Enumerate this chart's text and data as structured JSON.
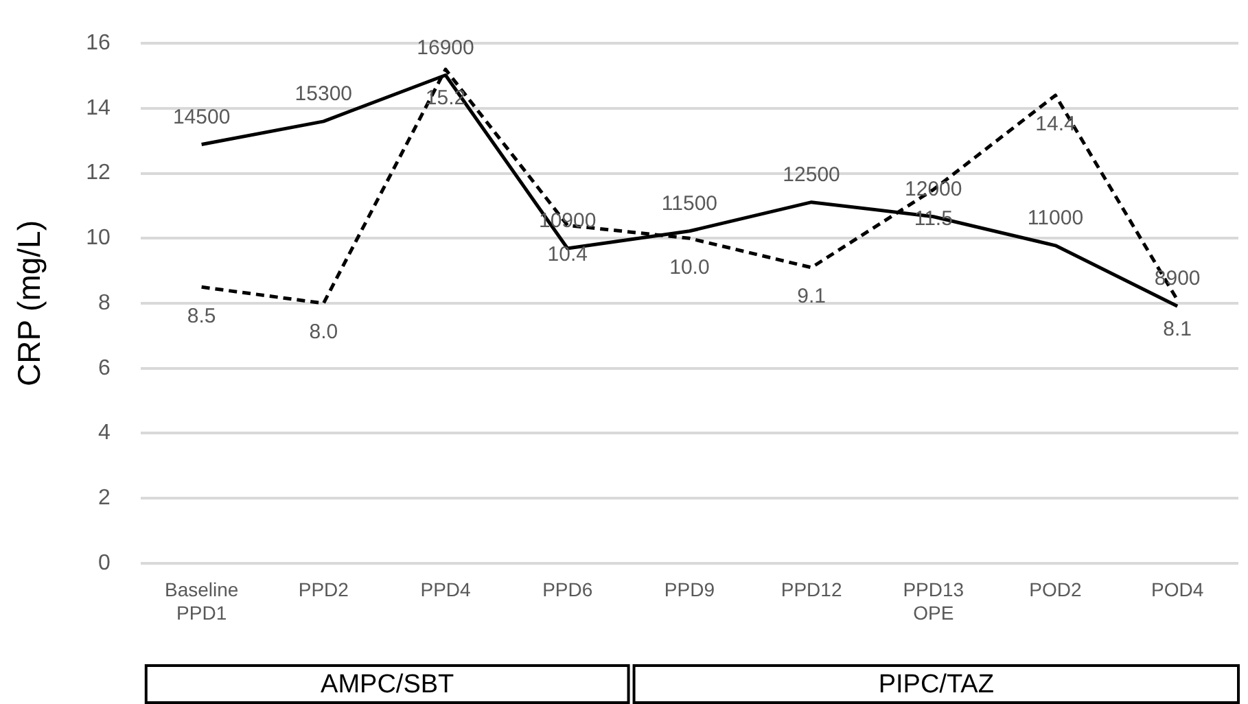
{
  "chart_data": {
    "type": "line",
    "ylabel": "CRP (mg/L)",
    "categories": [
      "Baseline\nPPD1",
      "PPD2",
      "PPD4",
      "PPD6",
      "PPD9",
      "PPD12",
      "PPD13\nOPE",
      "POD2",
      "POD4"
    ],
    "series": [
      {
        "color": "#000000",
        "axis": "y2",
        "line_style": "solid",
        "values": [
          14500,
          15300,
          16900,
          10900,
          11500,
          12500,
          12000,
          11000,
          8900
        ],
        "value_labels": [
          "14500",
          "15300",
          "16900",
          "10900",
          "11500",
          "12500",
          "12000",
          "11000",
          "8900"
        ]
      },
      {
        "color": "#000000",
        "line_style": "dashed",
        "values": [
          8.5,
          8.0,
          15.2,
          10.4,
          10.0,
          9.1,
          11.5,
          14.4,
          8.1
        ],
        "value_labels": [
          "8.5",
          "8.0",
          "15.2",
          "10.4",
          "10.0",
          "9.1",
          "11.5",
          "14.4",
          "8.1"
        ]
      }
    ],
    "ylim": [
      0,
      16
    ],
    "yticks": [
      0,
      2,
      4,
      6,
      8,
      10,
      12,
      14,
      16
    ],
    "y2lim": [
      0,
      18000
    ],
    "tick_labels": "xy",
    "grid": "y",
    "legend": false,
    "marker": "none",
    "annotations": [
      "AMPC/SBT",
      "PIPC/TAZ"
    ]
  }
}
